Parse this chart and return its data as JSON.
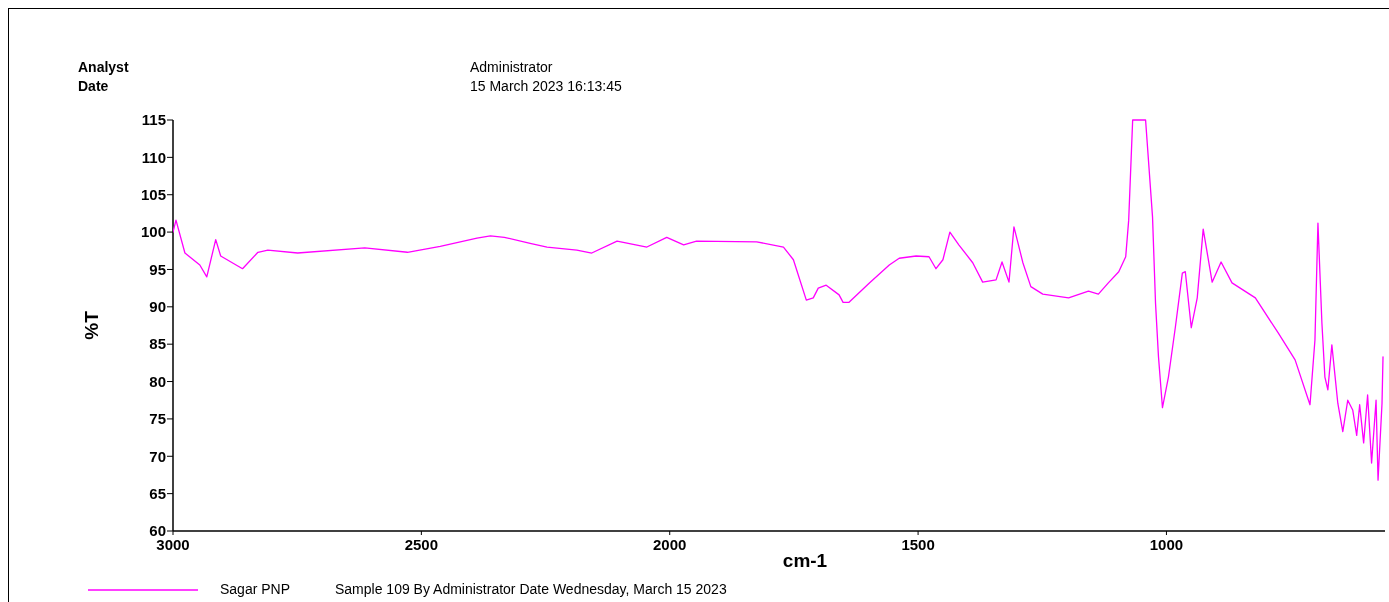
{
  "chart_data": {
    "type": "line",
    "xlabel": "cm-1",
    "ylabel": "%T",
    "annotations": [
      "Analyst",
      "Administrator",
      "Date",
      "15 March 2023 16:13:45",
      "Sample 109 By Administrator Date Wednesday, March 15 2023"
    ],
    "xlim": [
      3000,
      560
    ],
    "xticks": [
      3000,
      2500,
      2000,
      1500,
      1000
    ],
    "ylim": [
      60,
      115
    ],
    "yticks": [
      60,
      65,
      70,
      75,
      80,
      85,
      90,
      95,
      100,
      105,
      110,
      115
    ],
    "grid": false,
    "legend": "bottom",
    "marker": "none",
    "line_style": "solid",
    "series": [
      {
        "name": "Sagar PNP",
        "color": "#ff00ff",
        "x": [
          3000,
          2994,
          2976,
          2946,
          2932,
          2914,
          2904,
          2860,
          2829,
          2809,
          2749,
          2614,
          2528,
          2462,
          2388,
          2361,
          2333,
          2281,
          2247,
          2187,
          2157,
          2106,
          2046,
          2006,
          1972,
          1946,
          1825,
          1771,
          1751,
          1725,
          1711,
          1701,
          1685,
          1659,
          1651,
          1639,
          1598,
          1558,
          1538,
          1504,
          1478,
          1464,
          1450,
          1436,
          1418,
          1390,
          1370,
          1343,
          1331,
          1317,
          1307,
          1289,
          1273,
          1249,
          1197,
          1157,
          1137,
          1117,
          1096,
          1082,
          1076,
          1068,
          1042,
          1028,
          1022,
          1016,
          1008,
          996,
          982,
          968,
          962,
          950,
          938,
          926,
          908,
          890,
          868,
          821,
          775,
          741,
          711,
          701,
          695,
          687,
          681,
          675,
          667,
          655,
          645,
          635,
          625,
          617,
          611,
          603,
          595,
          587,
          578,
          574,
          566,
          564
        ],
        "values": [
          100.0,
          101.6,
          97.2,
          95.6,
          94.0,
          99.0,
          96.8,
          95.1,
          97.3,
          97.6,
          97.2,
          97.9,
          97.3,
          98.1,
          99.2,
          99.5,
          99.3,
          98.5,
          98.0,
          97.6,
          97.2,
          98.8,
          98.0,
          99.3,
          98.3,
          98.8,
          98.7,
          98.0,
          96.3,
          90.9,
          91.2,
          92.5,
          92.9,
          91.6,
          90.6,
          90.6,
          93.2,
          95.6,
          96.5,
          96.8,
          96.7,
          95.1,
          96.3,
          100.0,
          98.3,
          95.9,
          93.3,
          93.6,
          96.0,
          93.3,
          100.7,
          95.9,
          92.7,
          91.7,
          91.2,
          92.1,
          91.7,
          93.2,
          94.7,
          96.7,
          101.6,
          115,
          115,
          102.0,
          90.5,
          83.3,
          76.5,
          80.6,
          87.3,
          94.5,
          94.7,
          87.2,
          91.2,
          100.4,
          93.3,
          96.0,
          93.2,
          91.2,
          86.5,
          82.9,
          76.9,
          85.6,
          101.2,
          87.8,
          80.6,
          78.9,
          84.9,
          77.1,
          73.3,
          77.5,
          76.2,
          72.8,
          76.9,
          71.8,
          78.2,
          69.1,
          77.5,
          66.8,
          77.1,
          83.3
        ]
      }
    ]
  }
}
